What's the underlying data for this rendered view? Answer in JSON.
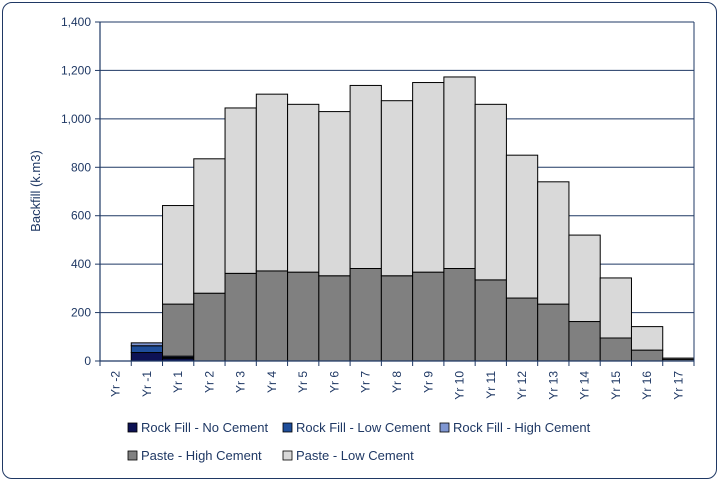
{
  "chart_data": {
    "type": "bar",
    "stacked": true,
    "ylabel": "Backfill (k.m3)",
    "xlabel": "",
    "title": "",
    "ylim": [
      0,
      1400
    ],
    "yticks": [
      0,
      200,
      400,
      600,
      800,
      1000,
      1200,
      1400
    ],
    "ytick_labels": [
      "0",
      "200",
      "400",
      "600",
      "800",
      "1,000",
      "1,200",
      "1,400"
    ],
    "grid": true,
    "legend_position": "bottom",
    "categories": [
      "Yr -2",
      "Yr -1",
      "Yr 1",
      "Yr 2",
      "Yr 3",
      "Yr 4",
      "Yr 5",
      "Yr 6",
      "Yr 7",
      "Yr 8",
      "Yr 9",
      "Yr 10",
      "Yr 11",
      "Yr 12",
      "Yr 13",
      "Yr 14",
      "Yr 15",
      "Yr 16",
      "Yr 17"
    ],
    "series": [
      {
        "name": "Rock Fill - No Cement",
        "color": "#0d1254",
        "values": [
          0,
          35,
          10,
          0,
          0,
          0,
          0,
          0,
          0,
          0,
          0,
          0,
          0,
          0,
          0,
          0,
          0,
          0,
          0
        ]
      },
      {
        "name": "Rock Fill - Low Cement",
        "color": "#1f4e9a",
        "values": [
          0,
          28,
          5,
          0,
          0,
          0,
          0,
          0,
          0,
          0,
          0,
          0,
          0,
          0,
          0,
          0,
          0,
          0,
          0
        ]
      },
      {
        "name": "Rock Fill - High Cement",
        "color": "#7f96d1",
        "values": [
          0,
          12,
          5,
          0,
          0,
          0,
          0,
          0,
          0,
          0,
          0,
          0,
          0,
          0,
          0,
          0,
          0,
          0,
          0
        ]
      },
      {
        "name": "Paste - High Cement",
        "color": "#808080",
        "values": [
          0,
          0,
          215,
          280,
          362,
          372,
          367,
          352,
          382,
          352,
          367,
          382,
          335,
          260,
          235,
          163,
          95,
          45,
          7
        ]
      },
      {
        "name": "Paste - Low Cement",
        "color": "#d9d9d9",
        "values": [
          0,
          0,
          407,
          555,
          683,
          730,
          693,
          678,
          756,
          723,
          783,
          791,
          725,
          590,
          505,
          357,
          248,
          97,
          5
        ]
      }
    ]
  }
}
